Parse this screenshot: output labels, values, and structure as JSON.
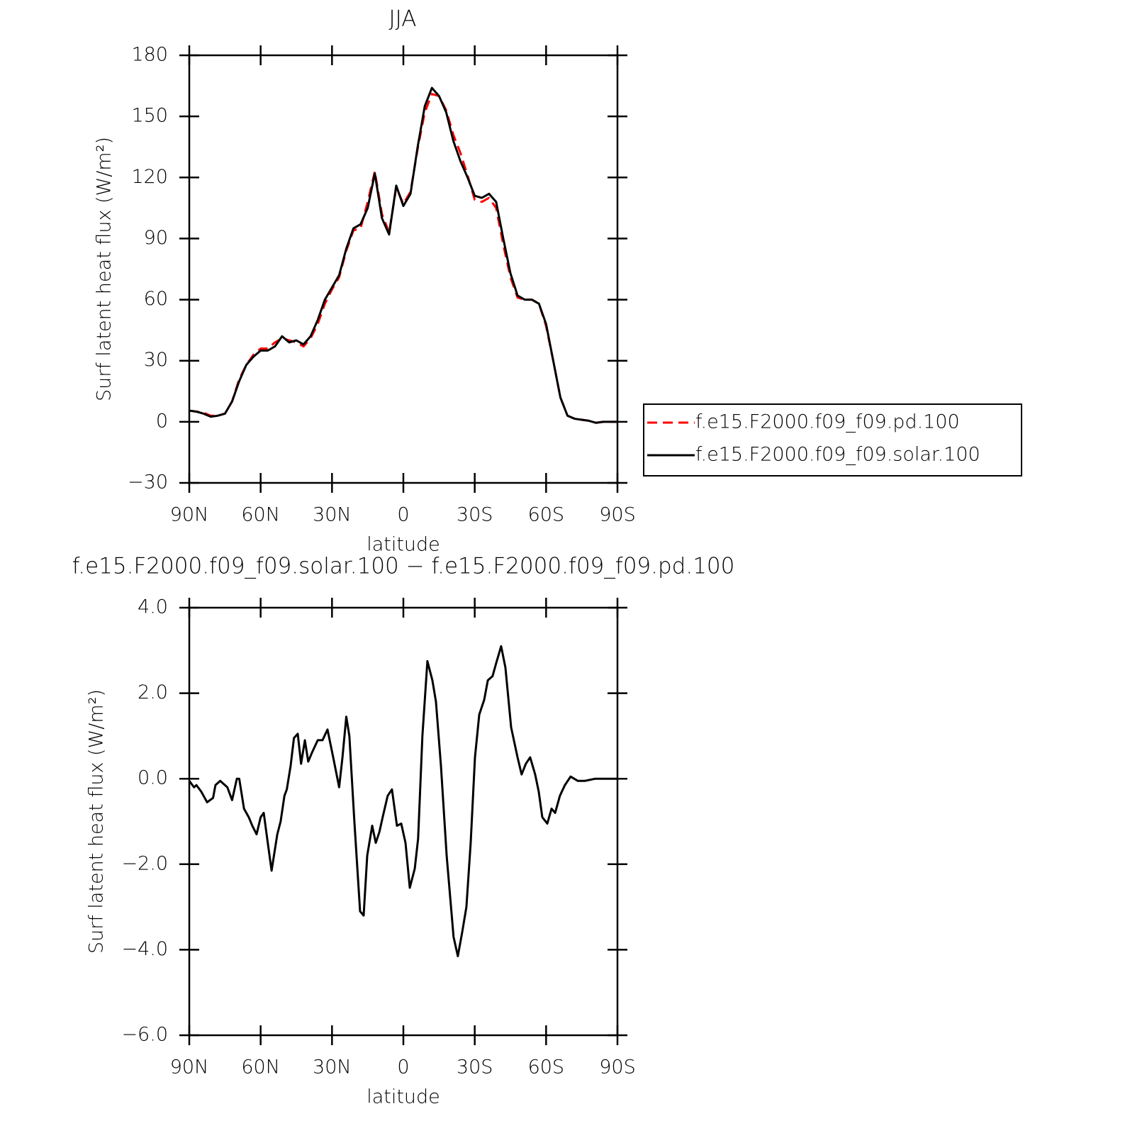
{
  "chart_data": [
    {
      "type": "line",
      "title": "JJA",
      "xlabel": "latitude",
      "ylabel": "Surf latent heat flux (W/m²)",
      "x": [
        90,
        87,
        84,
        81,
        78,
        75,
        72,
        69,
        66,
        63,
        60,
        57,
        54,
        51,
        48,
        45,
        42,
        39,
        36,
        33,
        30,
        27,
        24,
        21,
        18,
        15,
        12,
        9,
        6,
        3,
        0,
        -3,
        -6,
        -9,
        -12,
        -15,
        -18,
        -21,
        -24,
        -27,
        -30,
        -33,
        -36,
        -39,
        -42,
        -45,
        -48,
        -51,
        -54,
        -57,
        -60,
        -63,
        -66,
        -69,
        -72,
        -75,
        -78,
        -81,
        -84,
        -87,
        -90
      ],
      "series": [
        {
          "name": "f.e15.F2000.f09_f09.pd.100",
          "color": "#ff0000",
          "linestyle": "dashed",
          "values": [
            5.5,
            5,
            4.5,
            3,
            3,
            4,
            10,
            21,
            28,
            33,
            36,
            36,
            39,
            41,
            40,
            39,
            37,
            41,
            48,
            58,
            65,
            71,
            84,
            94,
            95,
            108,
            123,
            102,
            93,
            115,
            107,
            113,
            134,
            152,
            161,
            160,
            153,
            141,
            132,
            121,
            109,
            108,
            110,
            105,
            87,
            71,
            61,
            60,
            60,
            58,
            47,
            30,
            12,
            3,
            1.5,
            1,
            0.5,
            -0.5,
            0,
            0,
            0
          ]
        },
        {
          "name": "f.e15.F2000.f09_f09.solar.100",
          "color": "#000000",
          "linestyle": "solid",
          "values": [
            5.5,
            5,
            4,
            2.5,
            3,
            4,
            10,
            20,
            28,
            32,
            35,
            35,
            37,
            42,
            39,
            40,
            38,
            42,
            50,
            60,
            66,
            72,
            85,
            95,
            97,
            105,
            122,
            100,
            92,
            116,
            106,
            112,
            135,
            155,
            164,
            160,
            152,
            138,
            128,
            120,
            111,
            110,
            112,
            108,
            90,
            73,
            62,
            60,
            60,
            58,
            48,
            30,
            12,
            3,
            1.5,
            1,
            0.5,
            -0.5,
            0,
            0,
            0
          ]
        }
      ],
      "xlim": [
        90,
        -90
      ],
      "xticks": [
        {
          "value": 90,
          "label": "90N"
        },
        {
          "value": 60,
          "label": "60N"
        },
        {
          "value": 30,
          "label": "30N"
        },
        0,
        {
          "value": -30,
          "label": "30S"
        },
        {
          "value": -60,
          "label": "60S"
        },
        {
          "value": -90,
          "label": "90S"
        }
      ],
      "ylim": [
        -30,
        180
      ],
      "yticks": [
        {
          "value": -30,
          "label": "−30"
        },
        0,
        30,
        60,
        90,
        120,
        150,
        180
      ],
      "legend": "right"
    },
    {
      "type": "line",
      "title": "f.e15.F2000.f09_f09.solar.100 − f.e15.F2000.f09_f09.pd.100",
      "xlabel": "latitude",
      "ylabel": "Surf latent heat flux (W/m²)",
      "x": [
        90,
        88,
        87,
        85,
        82.5,
        80,
        79,
        77,
        74,
        72,
        70,
        69,
        67,
        65,
        63.5,
        61.7,
        60,
        58.7,
        57,
        55.4,
        53,
        51.6,
        50,
        49,
        47.4,
        46,
        44.4,
        43,
        41.4,
        40,
        38.5,
        36,
        34,
        31.9,
        29.5,
        27,
        25.6,
        24,
        22.7,
        20.6,
        18.2,
        16.7,
        15.2,
        13.1,
        11.6,
        10.1,
        8.7,
        6.6,
        4.8,
        2.7,
        0.9,
        -0.9,
        -2.7,
        -4.8,
        -6.2,
        -8,
        -10.1,
        -12.2,
        -13.7,
        -15.8,
        -18.2,
        -21.1,
        -22.9,
        -24.7,
        -26.5,
        -28.3,
        -30.1,
        -31.9,
        -34,
        -35.5,
        -37.5,
        -39,
        -41.1,
        -42.9,
        -45.3,
        -48,
        -49.7,
        -51.5,
        -53.3,
        -55.4,
        -56.9,
        -58.4,
        -60.5,
        -62.3,
        -63.8,
        -65.8,
        -67.9,
        -70.3,
        -73.3,
        -76.3,
        -80.7,
        -85.2,
        -90
      ],
      "series": [
        {
          "color": "#000000",
          "linestyle": "solid",
          "values": [
            -0.05,
            -0.2,
            -0.15,
            -0.3,
            -0.55,
            -0.45,
            -0.15,
            -0.05,
            -0.2,
            -0.5,
            0,
            0,
            -0.7,
            -0.9,
            -1.1,
            -1.3,
            -0.9,
            -0.8,
            -1.5,
            -2.15,
            -1.3,
            -1.0,
            -0.4,
            -0.25,
            0.3,
            0.95,
            1.05,
            0.35,
            0.9,
            0.4,
            0.6,
            0.9,
            0.9,
            1.15,
            0.5,
            -0.2,
            0.5,
            1.45,
            1.0,
            -1.0,
            -3.1,
            -3.2,
            -1.8,
            -1.1,
            -1.5,
            -1.25,
            -0.9,
            -0.4,
            -0.25,
            -1.1,
            -1.05,
            -1.5,
            -2.55,
            -2.1,
            -1.4,
            1.0,
            2.75,
            2.3,
            1.8,
            0.3,
            -1.8,
            -3.7,
            -4.15,
            -3.6,
            -3.0,
            -1.5,
            0.5,
            1.5,
            1.85,
            2.3,
            2.4,
            2.7,
            3.1,
            2.6,
            1.2,
            0.5,
            0.1,
            0.35,
            0.5,
            0.1,
            -0.3,
            -0.9,
            -1.05,
            -0.7,
            -0.8,
            -0.4,
            -0.15,
            0.05,
            -0.05,
            -0.05,
            0,
            0,
            0
          ]
        }
      ],
      "xlim": [
        90,
        -90
      ],
      "xticks": [
        {
          "value": 90,
          "label": "90N"
        },
        {
          "value": 60,
          "label": "60N"
        },
        {
          "value": 30,
          "label": "30N"
        },
        0,
        {
          "value": -30,
          "label": "30S"
        },
        {
          "value": -60,
          "label": "60S"
        },
        {
          "value": -90,
          "label": "90S"
        }
      ],
      "ylim": [
        -6,
        4
      ],
      "yticks": [
        {
          "value": -6,
          "label": "−6.0"
        },
        {
          "value": -4,
          "label": "−4.0"
        },
        {
          "value": -2,
          "label": "−2.0"
        },
        {
          "value": 0,
          "label": "0.0"
        },
        {
          "value": 2,
          "label": "2.0"
        },
        {
          "value": 4,
          "label": "4.0"
        }
      ]
    }
  ]
}
